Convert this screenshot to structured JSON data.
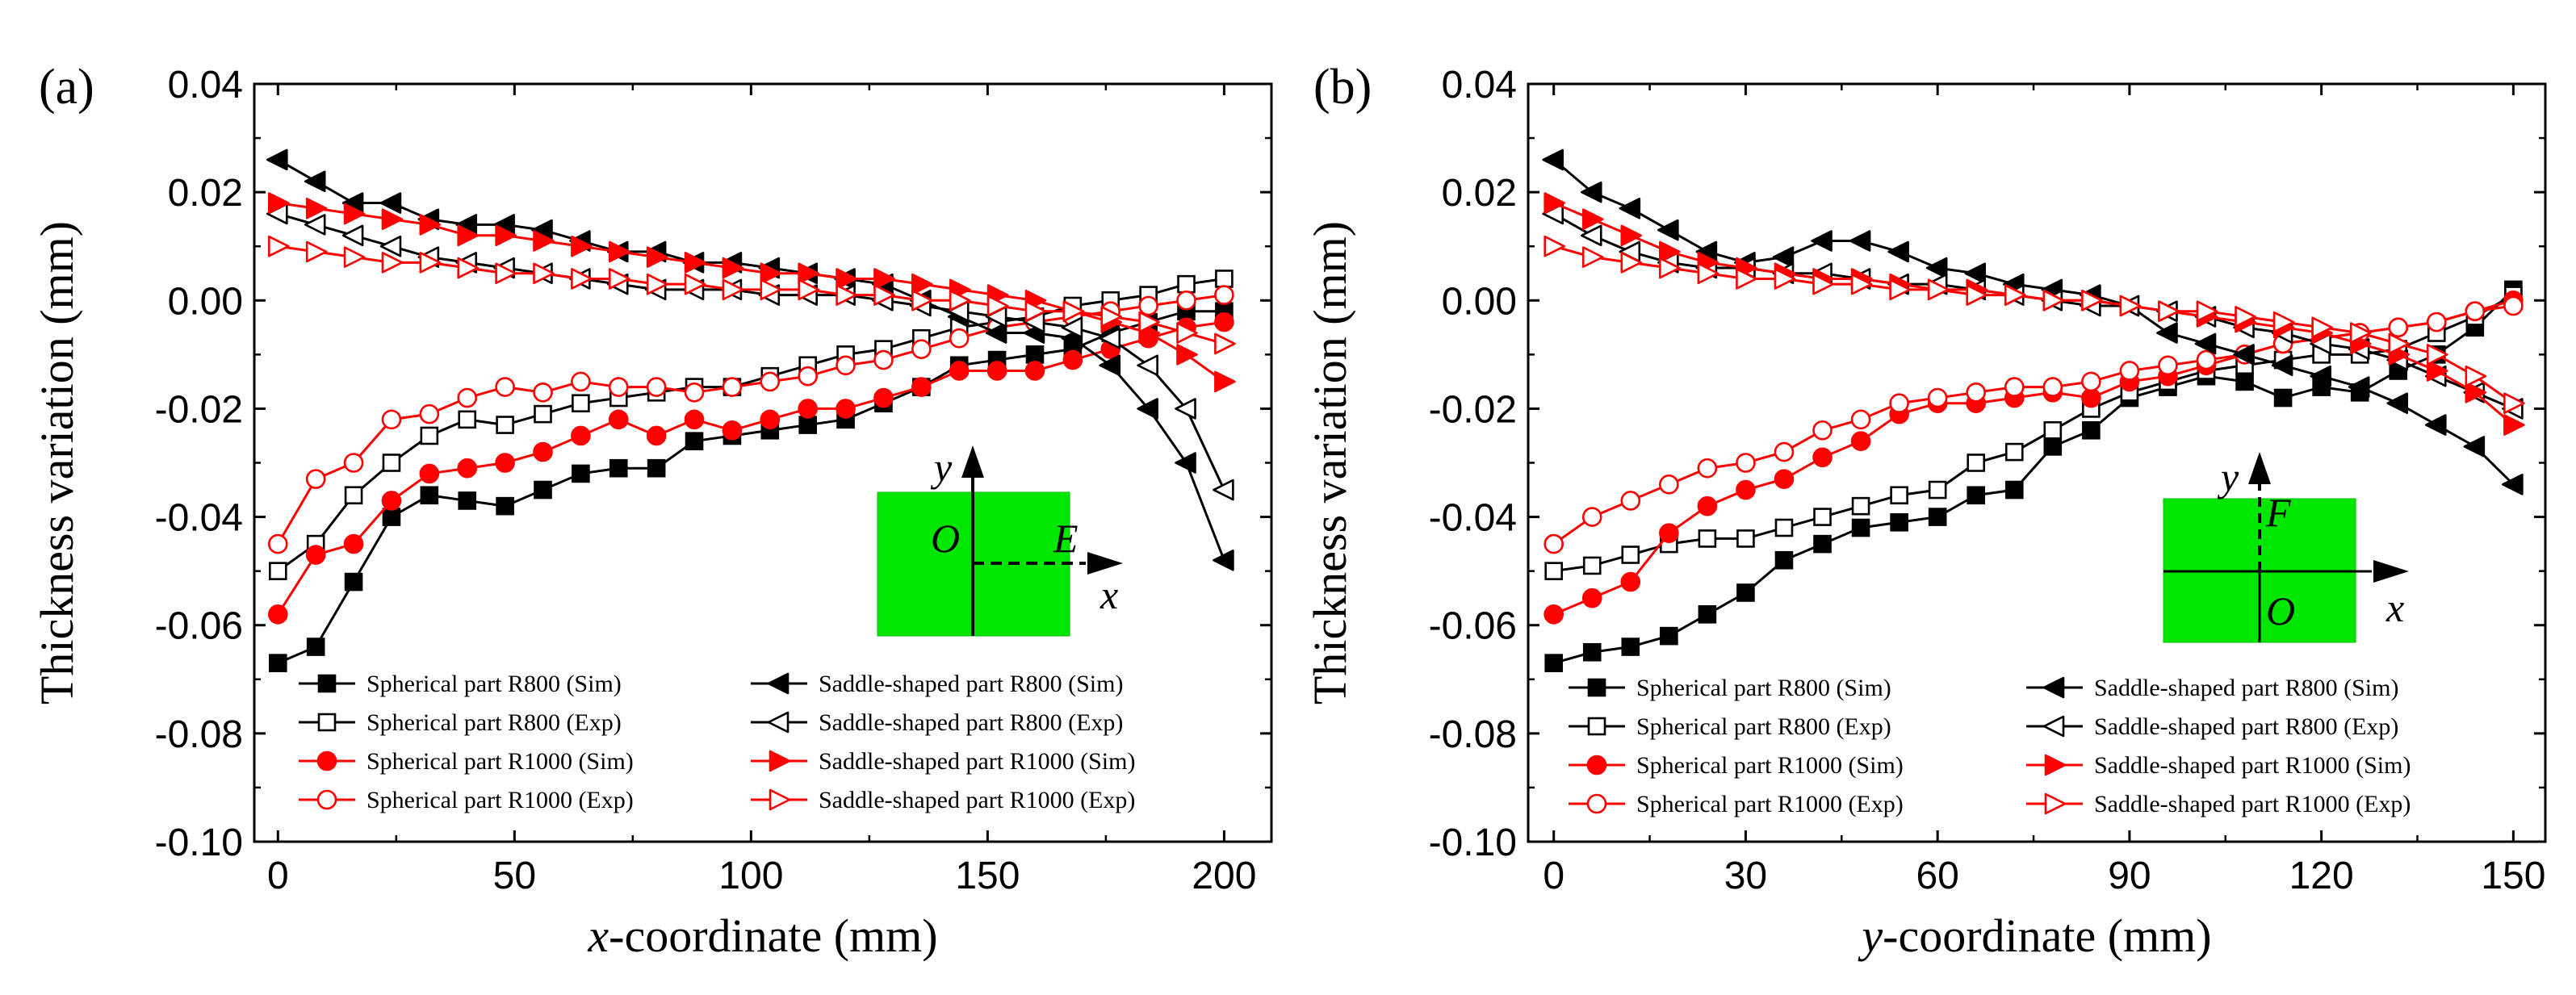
{
  "chart_data": [
    {
      "type": "line",
      "panel_label": "(a)",
      "xlabel_var": "x",
      "xlabel_rest": "-coordinate (mm)",
      "ylabel": "Thickness variation (mm)",
      "xlim": [
        -5,
        210
      ],
      "ylim": [
        -0.1,
        0.04
      ],
      "xticks": [
        0,
        50,
        100,
        150,
        200
      ],
      "yticks": [
        -0.1,
        -0.08,
        -0.06,
        -0.04,
        -0.02,
        0.0,
        0.02,
        0.04
      ],
      "ytick_labels": [
        "-0.10",
        "-0.08",
        "-0.06",
        "-0.04",
        "-0.02",
        "0.00",
        "0.02",
        "0.04"
      ],
      "inset": {
        "y_axis": "y",
        "x_axis": "x",
        "origin": "O",
        "point": "E"
      },
      "series": [
        {
          "name": "Spherical part R800 (Sim)",
          "color": "#000000",
          "marker": "square-filled",
          "x": [
            0,
            8,
            16,
            24,
            32,
            40,
            48,
            56,
            64,
            72,
            80,
            88,
            96,
            104,
            112,
            120,
            128,
            136,
            144,
            152,
            160,
            168,
            176,
            184,
            192,
            200
          ],
          "y": [
            -0.067,
            -0.064,
            -0.052,
            -0.04,
            -0.036,
            -0.037,
            -0.038,
            -0.035,
            -0.032,
            -0.031,
            -0.031,
            -0.026,
            -0.025,
            -0.024,
            -0.023,
            -0.022,
            -0.019,
            -0.016,
            -0.012,
            -0.011,
            -0.01,
            -0.009,
            -0.006,
            -0.004,
            -0.002,
            -0.002
          ]
        },
        {
          "name": "Spherical part R800 (Exp)",
          "color": "#000000",
          "marker": "square-open",
          "x": [
            0,
            8,
            16,
            24,
            32,
            40,
            48,
            56,
            64,
            72,
            80,
            88,
            96,
            104,
            112,
            120,
            128,
            136,
            144,
            152,
            160,
            168,
            176,
            184,
            192,
            200
          ],
          "y": [
            -0.05,
            -0.045,
            -0.036,
            -0.03,
            -0.025,
            -0.022,
            -0.023,
            -0.021,
            -0.019,
            -0.018,
            -0.017,
            -0.016,
            -0.016,
            -0.014,
            -0.012,
            -0.01,
            -0.009,
            -0.007,
            -0.005,
            -0.004,
            -0.003,
            -0.001,
            0.0,
            0.001,
            0.003,
            0.004
          ]
        },
        {
          "name": "Spherical part R1000 (Sim)",
          "color": "#ff0000",
          "marker": "circle-filled",
          "x": [
            0,
            8,
            16,
            24,
            32,
            40,
            48,
            56,
            64,
            72,
            80,
            88,
            96,
            104,
            112,
            120,
            128,
            136,
            144,
            152,
            160,
            168,
            176,
            184,
            192,
            200
          ],
          "y": [
            -0.058,
            -0.047,
            -0.045,
            -0.037,
            -0.032,
            -0.031,
            -0.03,
            -0.028,
            -0.025,
            -0.022,
            -0.025,
            -0.022,
            -0.024,
            -0.022,
            -0.02,
            -0.02,
            -0.018,
            -0.016,
            -0.013,
            -0.013,
            -0.013,
            -0.011,
            -0.009,
            -0.007,
            -0.005,
            -0.004
          ]
        },
        {
          "name": "Spherical part R1000 (Exp)",
          "color": "#ff0000",
          "marker": "circle-open",
          "x": [
            0,
            8,
            16,
            24,
            32,
            40,
            48,
            56,
            64,
            72,
            80,
            88,
            96,
            104,
            112,
            120,
            128,
            136,
            144,
            152,
            160,
            168,
            176,
            184,
            192,
            200
          ],
          "y": [
            -0.045,
            -0.033,
            -0.03,
            -0.022,
            -0.021,
            -0.018,
            -0.016,
            -0.017,
            -0.015,
            -0.016,
            -0.016,
            -0.017,
            -0.016,
            -0.015,
            -0.014,
            -0.012,
            -0.011,
            -0.009,
            -0.007,
            -0.005,
            -0.004,
            -0.003,
            -0.002,
            -0.001,
            0.0,
            0.001
          ]
        },
        {
          "name": "Saddle-shaped part R800 (Sim)",
          "color": "#000000",
          "marker": "tri-left-filled",
          "x": [
            0,
            8,
            16,
            24,
            32,
            40,
            48,
            56,
            64,
            72,
            80,
            88,
            96,
            104,
            112,
            120,
            128,
            136,
            144,
            152,
            160,
            168,
            176,
            184,
            192,
            200
          ],
          "y": [
            0.026,
            0.022,
            0.018,
            0.018,
            0.015,
            0.014,
            0.014,
            0.013,
            0.011,
            0.009,
            0.009,
            0.007,
            0.007,
            0.006,
            0.005,
            0.004,
            0.003,
            0.0,
            -0.003,
            -0.006,
            -0.006,
            -0.007,
            -0.012,
            -0.02,
            -0.03,
            -0.048
          ]
        },
        {
          "name": "Saddle-shaped part R800 (Exp)",
          "color": "#000000",
          "marker": "tri-left-open",
          "x": [
            0,
            8,
            16,
            24,
            32,
            40,
            48,
            56,
            64,
            72,
            80,
            88,
            96,
            104,
            112,
            120,
            128,
            136,
            144,
            152,
            160,
            168,
            176,
            184,
            192,
            200
          ],
          "y": [
            0.016,
            0.014,
            0.012,
            0.01,
            0.008,
            0.007,
            0.006,
            0.005,
            0.004,
            0.003,
            0.002,
            0.002,
            0.002,
            0.001,
            0.001,
            0.001,
            0.0,
            -0.001,
            -0.002,
            -0.003,
            -0.004,
            -0.005,
            -0.007,
            -0.012,
            -0.02,
            -0.035
          ]
        },
        {
          "name": "Saddle-shaped part R1000 (Sim)",
          "color": "#ff0000",
          "marker": "tri-right-filled",
          "x": [
            0,
            8,
            16,
            24,
            32,
            40,
            48,
            56,
            64,
            72,
            80,
            88,
            96,
            104,
            112,
            120,
            128,
            136,
            144,
            152,
            160,
            168,
            176,
            184,
            192,
            200
          ],
          "y": [
            0.018,
            0.017,
            0.016,
            0.015,
            0.014,
            0.012,
            0.012,
            0.011,
            0.01,
            0.009,
            0.008,
            0.007,
            0.006,
            0.005,
            0.005,
            0.004,
            0.004,
            0.003,
            0.002,
            0.001,
            0.0,
            -0.002,
            -0.004,
            -0.006,
            -0.01,
            -0.015
          ]
        },
        {
          "name": "Saddle-shaped part R1000 (Exp)",
          "color": "#ff0000",
          "marker": "tri-right-open",
          "x": [
            0,
            8,
            16,
            24,
            32,
            40,
            48,
            56,
            64,
            72,
            80,
            88,
            96,
            104,
            112,
            120,
            128,
            136,
            144,
            152,
            160,
            168,
            176,
            184,
            192,
            200
          ],
          "y": [
            0.01,
            0.009,
            0.008,
            0.007,
            0.007,
            0.006,
            0.005,
            0.005,
            0.004,
            0.004,
            0.003,
            0.003,
            0.002,
            0.002,
            0.002,
            0.001,
            0.001,
            0.0,
            0.0,
            -0.001,
            -0.002,
            -0.002,
            -0.003,
            -0.004,
            -0.006,
            -0.008
          ]
        }
      ]
    },
    {
      "type": "line",
      "panel_label": "(b)",
      "xlabel_var": "y",
      "xlabel_rest": "-coordinate (mm)",
      "ylabel": "Thickness variation (mm)",
      "xlim": [
        -4,
        155
      ],
      "ylim": [
        -0.1,
        0.04
      ],
      "xticks": [
        0,
        30,
        60,
        90,
        120,
        150
      ],
      "yticks": [
        -0.1,
        -0.08,
        -0.06,
        -0.04,
        -0.02,
        0.0,
        0.02,
        0.04
      ],
      "ytick_labels": [
        "-0.10",
        "-0.08",
        "-0.06",
        "-0.04",
        "-0.02",
        "0.00",
        "0.02",
        "0.04"
      ],
      "inset": {
        "y_axis": "y",
        "x_axis": "x",
        "origin": "O",
        "point": "F"
      },
      "series": [
        {
          "name": "Spherical part R800 (Sim)",
          "color": "#000000",
          "marker": "square-filled",
          "x": [
            0,
            6,
            12,
            18,
            24,
            30,
            36,
            42,
            48,
            54,
            60,
            66,
            72,
            78,
            84,
            90,
            96,
            102,
            108,
            114,
            120,
            126,
            132,
            138,
            144,
            150
          ],
          "y": [
            -0.067,
            -0.065,
            -0.064,
            -0.062,
            -0.058,
            -0.054,
            -0.048,
            -0.045,
            -0.042,
            -0.041,
            -0.04,
            -0.036,
            -0.035,
            -0.027,
            -0.024,
            -0.018,
            -0.016,
            -0.014,
            -0.015,
            -0.018,
            -0.016,
            -0.017,
            -0.013,
            -0.01,
            -0.005,
            0.002
          ]
        },
        {
          "name": "Spherical part R800 (Exp)",
          "color": "#000000",
          "marker": "square-open",
          "x": [
            0,
            6,
            12,
            18,
            24,
            30,
            36,
            42,
            48,
            54,
            60,
            66,
            72,
            78,
            84,
            90,
            96,
            102,
            108,
            114,
            120,
            126,
            132,
            138,
            144,
            150
          ],
          "y": [
            -0.05,
            -0.049,
            -0.047,
            -0.045,
            -0.044,
            -0.044,
            -0.042,
            -0.04,
            -0.038,
            -0.036,
            -0.035,
            -0.03,
            -0.028,
            -0.024,
            -0.02,
            -0.017,
            -0.015,
            -0.013,
            -0.012,
            -0.011,
            -0.01,
            -0.01,
            -0.009,
            -0.006,
            -0.003,
            0.001
          ]
        },
        {
          "name": "Spherical part R1000 (Sim)",
          "color": "#ff0000",
          "marker": "circle-filled",
          "x": [
            0,
            6,
            12,
            18,
            24,
            30,
            36,
            42,
            48,
            54,
            60,
            66,
            72,
            78,
            84,
            90,
            96,
            102,
            108,
            114,
            120,
            126,
            132,
            138,
            144,
            150
          ],
          "y": [
            -0.058,
            -0.055,
            -0.052,
            -0.043,
            -0.038,
            -0.035,
            -0.033,
            -0.029,
            -0.026,
            -0.021,
            -0.019,
            -0.019,
            -0.018,
            -0.017,
            -0.018,
            -0.015,
            -0.014,
            -0.012,
            -0.01,
            -0.008,
            -0.007,
            -0.006,
            -0.005,
            -0.004,
            -0.002,
            0.0
          ]
        },
        {
          "name": "Spherical part R1000 (Exp)",
          "color": "#ff0000",
          "marker": "circle-open",
          "x": [
            0,
            6,
            12,
            18,
            24,
            30,
            36,
            42,
            48,
            54,
            60,
            66,
            72,
            78,
            84,
            90,
            96,
            102,
            108,
            114,
            120,
            126,
            132,
            138,
            144,
            150
          ],
          "y": [
            -0.045,
            -0.04,
            -0.037,
            -0.034,
            -0.031,
            -0.03,
            -0.028,
            -0.024,
            -0.022,
            -0.019,
            -0.018,
            -0.017,
            -0.016,
            -0.016,
            -0.015,
            -0.013,
            -0.012,
            -0.011,
            -0.01,
            -0.008,
            -0.007,
            -0.006,
            -0.005,
            -0.004,
            -0.002,
            -0.001
          ]
        },
        {
          "name": "Saddle-shaped part R800 (Sim)",
          "color": "#000000",
          "marker": "tri-left-filled",
          "x": [
            0,
            6,
            12,
            18,
            24,
            30,
            36,
            42,
            48,
            54,
            60,
            66,
            72,
            78,
            84,
            90,
            96,
            102,
            108,
            114,
            120,
            126,
            132,
            138,
            144,
            150
          ],
          "y": [
            0.026,
            0.02,
            0.017,
            0.013,
            0.009,
            0.007,
            0.008,
            0.011,
            0.011,
            0.009,
            0.006,
            0.005,
            0.003,
            0.002,
            0.001,
            -0.001,
            -0.006,
            -0.008,
            -0.01,
            -0.012,
            -0.014,
            -0.016,
            -0.019,
            -0.023,
            -0.027,
            -0.034
          ]
        },
        {
          "name": "Saddle-shaped part R800 (Exp)",
          "color": "#000000",
          "marker": "tri-left-open",
          "x": [
            0,
            6,
            12,
            18,
            24,
            30,
            36,
            42,
            48,
            54,
            60,
            66,
            72,
            78,
            84,
            90,
            96,
            102,
            108,
            114,
            120,
            126,
            132,
            138,
            144,
            150
          ],
          "y": [
            0.016,
            0.012,
            0.009,
            0.007,
            0.006,
            0.006,
            0.005,
            0.005,
            0.004,
            0.003,
            0.003,
            0.002,
            0.001,
            0.0,
            -0.001,
            -0.001,
            -0.002,
            -0.003,
            -0.005,
            -0.006,
            -0.008,
            -0.009,
            -0.011,
            -0.014,
            -0.017,
            -0.02
          ]
        },
        {
          "name": "Saddle-shaped part R1000 (Sim)",
          "color": "#ff0000",
          "marker": "tri-right-filled",
          "x": [
            0,
            6,
            12,
            18,
            24,
            30,
            36,
            42,
            48,
            54,
            60,
            66,
            72,
            78,
            84,
            90,
            96,
            102,
            108,
            114,
            120,
            126,
            132,
            138,
            144,
            150
          ],
          "y": [
            0.018,
            0.015,
            0.012,
            0.009,
            0.007,
            0.006,
            0.005,
            0.004,
            0.004,
            0.003,
            0.002,
            0.002,
            0.001,
            0.0,
            0.0,
            -0.001,
            -0.002,
            -0.003,
            -0.004,
            -0.005,
            -0.006,
            -0.008,
            -0.01,
            -0.013,
            -0.017,
            -0.023
          ]
        },
        {
          "name": "Saddle-shaped part R1000 (Exp)",
          "color": "#ff0000",
          "marker": "tri-right-open",
          "x": [
            0,
            6,
            12,
            18,
            24,
            30,
            36,
            42,
            48,
            54,
            60,
            66,
            72,
            78,
            84,
            90,
            96,
            102,
            108,
            114,
            120,
            126,
            132,
            138,
            144,
            150
          ],
          "y": [
            0.01,
            0.008,
            0.007,
            0.006,
            0.005,
            0.004,
            0.004,
            0.003,
            0.003,
            0.002,
            0.002,
            0.001,
            0.001,
            0.0,
            0.0,
            -0.001,
            -0.002,
            -0.002,
            -0.003,
            -0.004,
            -0.005,
            -0.006,
            -0.008,
            -0.01,
            -0.014,
            -0.019
          ]
        }
      ]
    }
  ]
}
